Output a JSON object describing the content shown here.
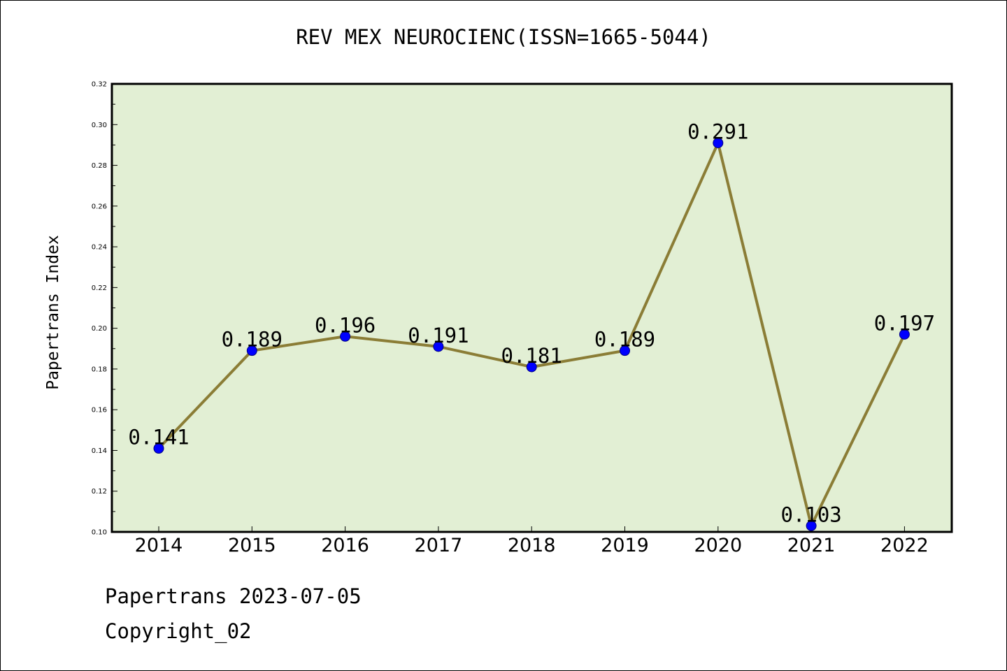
{
  "chart_data": {
    "type": "line",
    "title": "REV MEX NEUROCIENC(ISSN=1665-5044)",
    "xlabel": "",
    "ylabel": "Papertrans Index",
    "x": [
      "2014",
      "2015",
      "2016",
      "2017",
      "2018",
      "2019",
      "2020",
      "2021",
      "2022"
    ],
    "series": [
      {
        "values": [
          0.141,
          0.189,
          0.196,
          0.191,
          0.181,
          0.189,
          0.291,
          0.103,
          0.197
        ],
        "data_labels": [
          "0.141",
          "0.189",
          "0.196",
          "0.191",
          "0.181",
          "0.189",
          "0.291",
          "0.103",
          "0.197"
        ]
      }
    ],
    "ylim": [
      0.1,
      0.32
    ],
    "yticks": [
      "0.10",
      "0.12",
      "0.14",
      "0.16",
      "0.18",
      "0.20",
      "0.22",
      "0.24",
      "0.26",
      "0.28",
      "0.30",
      "0.32"
    ],
    "grid": false,
    "legend": "none",
    "colors": {
      "plot_background": "#e2efd4",
      "line": "#8b7d36",
      "marker": "#0000ff",
      "marker_edge": "#000080"
    }
  },
  "footer": {
    "date_line": "Papertrans 2023-07-05",
    "copyright": "Copyright_02"
  }
}
